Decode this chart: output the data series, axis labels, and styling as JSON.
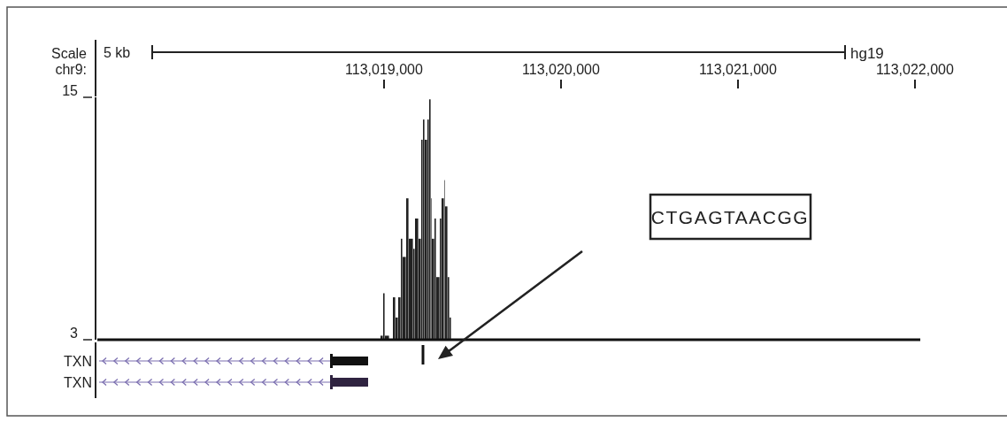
{
  "chart_data": {
    "type": "histogram",
    "xlabel": "chr9:",
    "bins": [
      113018980,
      113018995,
      113019005,
      113019030,
      113019050,
      113019065,
      113019080,
      113019095,
      113019105,
      113019125,
      113019140,
      113019165,
      113019175,
      113019195,
      113019210,
      113019220,
      113019230,
      113019245,
      113019255,
      113019265,
      113019270,
      113019285,
      113019295,
      113019315,
      113019325,
      113019340,
      113019345,
      113019360,
      113019370,
      113019380
    ],
    "values": [
      3.2,
      5.3,
      3.2,
      null,
      5.1,
      4.1,
      5.1,
      8.0,
      7.1,
      10.0,
      8.0,
      7.5,
      9.0,
      8.0,
      12.9,
      13.9,
      12.9,
      13.9,
      14.9,
      10.0,
      8.0,
      9.0,
      6.1,
      9.0,
      10.0,
      10.9,
      9.6,
      6.1,
      4.1
    ],
    "color": "#222222",
    "xlim": [
      113017380,
      113022030
    ],
    "xticks": [
      {
        "value": 113019000,
        "label": "113,019,000"
      },
      {
        "value": 113020000,
        "label": "113,020,000"
      },
      {
        "value": 113021000,
        "label": "113,021,000"
      },
      {
        "value": 113022000,
        "label": "113,022,000"
      }
    ],
    "ylim": [
      3,
      15
    ],
    "yticks": [
      3,
      15
    ],
    "annotations": [
      "Scale",
      "5 kb",
      "hg19",
      "TXN",
      "TXN",
      "CTGAGTAACGG"
    ]
  }
}
